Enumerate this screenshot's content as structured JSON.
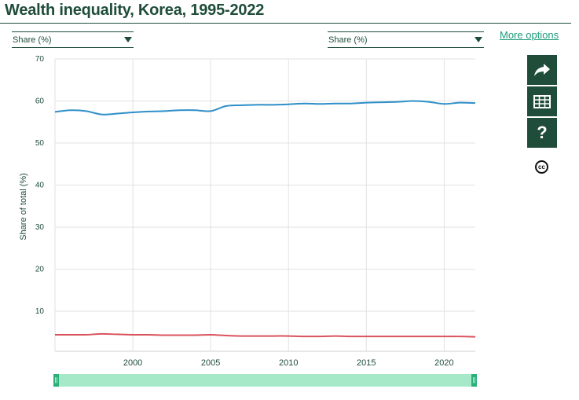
{
  "title": "Wealth inequality, Korea, 1995-2022",
  "controls": {
    "left_select": "Share (%)",
    "right_select": "Share (%)",
    "more_options": "More options"
  },
  "toolbar": {
    "share_icon": "share-arrow-icon",
    "table_icon": "table-icon",
    "help_label": "?",
    "cc_label": "cc"
  },
  "colors": {
    "series_top": "#2e8fc9",
    "series_bottom": "#d9535c",
    "accent": "#1f4d3a"
  },
  "chart_data": {
    "type": "line",
    "ylabel": "Share of total (%)",
    "xlabel": "",
    "xlim": [
      1995,
      2022
    ],
    "ylim": [
      0,
      70
    ],
    "yticks": [
      10,
      20,
      30,
      40,
      50,
      60,
      70
    ],
    "xticks": [
      2000,
      2005,
      2010,
      2015,
      2020
    ],
    "grid": true,
    "x": [
      1995,
      1996,
      1997,
      1998,
      1999,
      2000,
      2001,
      2002,
      2003,
      2004,
      2005,
      2006,
      2007,
      2008,
      2009,
      2010,
      2011,
      2012,
      2013,
      2014,
      2015,
      2016,
      2017,
      2018,
      2019,
      2020,
      2021,
      2022
    ],
    "series": [
      {
        "values": [
          57.4,
          57.8,
          57.6,
          56.8,
          57.0,
          57.3,
          57.5,
          57.6,
          57.8,
          57.8,
          57.6,
          58.8,
          59.0,
          59.1,
          59.1,
          59.2,
          59.4,
          59.3,
          59.4,
          59.4,
          59.6,
          59.7,
          59.8,
          60.0,
          59.8,
          59.3,
          59.6,
          59.5
        ]
      },
      {
        "values": [
          4.4,
          4.4,
          4.4,
          4.6,
          4.5,
          4.4,
          4.4,
          4.3,
          4.3,
          4.3,
          4.4,
          4.2,
          4.1,
          4.1,
          4.1,
          4.1,
          4.0,
          4.0,
          4.1,
          4.0,
          4.0,
          4.0,
          4.0,
          4.0,
          4.0,
          4.0,
          4.0,
          3.9
        ]
      }
    ]
  }
}
